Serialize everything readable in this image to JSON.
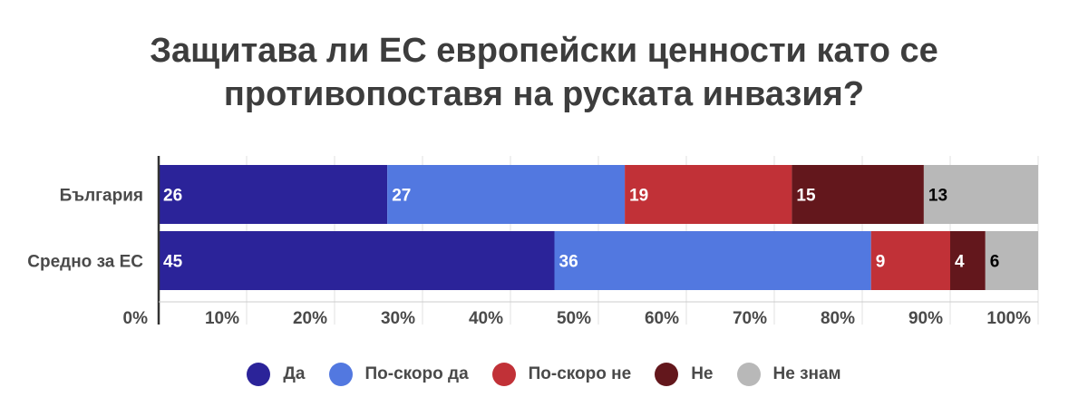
{
  "chart_data": {
    "type": "bar",
    "orientation": "horizontal",
    "stacked": true,
    "title": "Защитава ли ЕС европейски ценности като се противопоставя на руската инвазия?",
    "title_lines": [
      "Защитава ли ЕС европейски ценности като се",
      "противопоставя на руската инвазия?"
    ],
    "categories": [
      "България",
      "Средно за ЕС"
    ],
    "series": [
      {
        "name": "Да",
        "values": [
          26,
          45
        ],
        "color": "#2b2399",
        "label_color": "#ffffff"
      },
      {
        "name": "По-скоро да",
        "values": [
          27,
          36
        ],
        "color": "#5278e0",
        "label_color": "#ffffff"
      },
      {
        "name": "По-скоро не",
        "values": [
          19,
          9
        ],
        "color": "#c13137",
        "label_color": "#ffffff"
      },
      {
        "name": "Не",
        "values": [
          15,
          4
        ],
        "color": "#63171c",
        "label_color": "#ffffff"
      },
      {
        "name": "Не знам",
        "values": [
          13,
          6
        ],
        "color": "#b8b8b8",
        "label_color": "#000000"
      }
    ],
    "x_ticks": [
      "0%",
      "10%",
      "20%",
      "30%",
      "40%",
      "50%",
      "60%",
      "70%",
      "80%",
      "90%",
      "100%"
    ],
    "xlim": [
      0,
      100
    ],
    "grid": true,
    "legend_position": "bottom"
  }
}
